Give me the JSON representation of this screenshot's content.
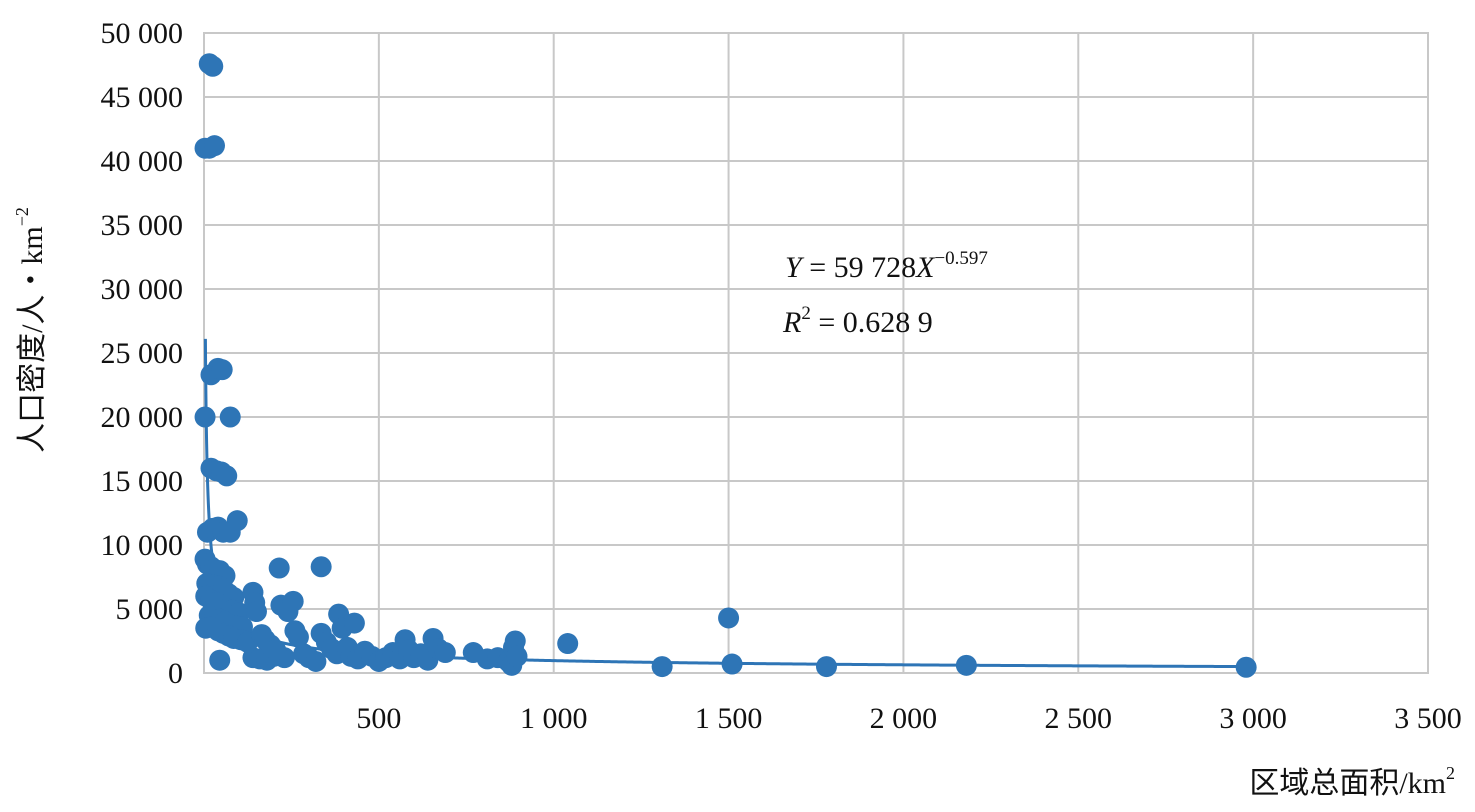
{
  "chart_data": {
    "type": "scatter",
    "xlabel": "区域总面积/km",
    "xlabel_superscript": "2",
    "ylabel": "人口密度/人・km",
    "ylabel_superscript": "−2",
    "x_ticks": [
      "500",
      "1 000",
      "1 500",
      "2 000",
      "2 500",
      "3 000",
      "3 500"
    ],
    "y_ticks": [
      "0",
      "5 000",
      "10 000",
      "15 000",
      "20 000",
      "25 000",
      "30 000",
      "35 000",
      "40 000",
      "45 000",
      "50 000"
    ],
    "xlim": [
      0,
      3500
    ],
    "ylim": [
      0,
      50000
    ],
    "grid": true,
    "legend": "none",
    "colors": {
      "points": "#2e75b6",
      "trendline": "#2e75b6",
      "grid": "#c8c8c8"
    },
    "trendline": {
      "type": "power",
      "a": 59728,
      "b": -0.597,
      "equation_lead": "Y",
      "equation_rest": " = 59 728",
      "equation_x": "X",
      "equation_exponent": "−0.597",
      "r2_lead": "R",
      "r2_sup": "2",
      "r2_rest": " = 0.628 9"
    },
    "points": [
      [
        15,
        47600
      ],
      [
        25,
        47400
      ],
      [
        3,
        41000
      ],
      [
        15,
        41000
      ],
      [
        30,
        41200
      ],
      [
        20,
        23300
      ],
      [
        40,
        23800
      ],
      [
        52,
        23700
      ],
      [
        3,
        20000
      ],
      [
        75,
        20000
      ],
      [
        20,
        16000
      ],
      [
        35,
        15800
      ],
      [
        50,
        15700
      ],
      [
        65,
        15400
      ],
      [
        10,
        11000
      ],
      [
        25,
        11300
      ],
      [
        40,
        11400
      ],
      [
        55,
        11000
      ],
      [
        75,
        11000
      ],
      [
        95,
        11900
      ],
      [
        3,
        8900
      ],
      [
        10,
        8500
      ],
      [
        20,
        8300
      ],
      [
        30,
        8100
      ],
      [
        45,
        8000
      ],
      [
        60,
        7600
      ],
      [
        8,
        7000
      ],
      [
        25,
        6900
      ],
      [
        40,
        6800
      ],
      [
        55,
        6600
      ],
      [
        70,
        6200
      ],
      [
        85,
        5900
      ],
      [
        5,
        6000
      ],
      [
        20,
        5700
      ],
      [
        35,
        5500
      ],
      [
        50,
        5300
      ],
      [
        65,
        5000
      ],
      [
        80,
        4900
      ],
      [
        100,
        4700
      ],
      [
        15,
        4500
      ],
      [
        30,
        4400
      ],
      [
        45,
        4200
      ],
      [
        60,
        4000
      ],
      [
        75,
        3800
      ],
      [
        90,
        3700
      ],
      [
        110,
        3600
      ],
      [
        5,
        3500
      ],
      [
        20,
        3600
      ],
      [
        40,
        3300
      ],
      [
        55,
        3100
      ],
      [
        70,
        2900
      ],
      [
        85,
        2700
      ],
      [
        105,
        2600
      ],
      [
        125,
        2400
      ],
      [
        45,
        1000
      ],
      [
        140,
        1200
      ],
      [
        160,
        1100
      ],
      [
        180,
        1000
      ],
      [
        200,
        1300
      ],
      [
        230,
        1200
      ],
      [
        140,
        6300
      ],
      [
        145,
        5500
      ],
      [
        150,
        4800
      ],
      [
        165,
        3000
      ],
      [
        175,
        2600
      ],
      [
        190,
        2200
      ],
      [
        205,
        1800
      ],
      [
        215,
        8200
      ],
      [
        220,
        5300
      ],
      [
        240,
        4800
      ],
      [
        255,
        5600
      ],
      [
        260,
        3300
      ],
      [
        270,
        2800
      ],
      [
        285,
        1500
      ],
      [
        300,
        1200
      ],
      [
        320,
        900
      ],
      [
        335,
        8300
      ],
      [
        335,
        3100
      ],
      [
        350,
        2400
      ],
      [
        365,
        1900
      ],
      [
        380,
        1500
      ],
      [
        385,
        4600
      ],
      [
        395,
        3500
      ],
      [
        410,
        2000
      ],
      [
        420,
        1300
      ],
      [
        430,
        3900
      ],
      [
        440,
        1100
      ],
      [
        460,
        1700
      ],
      [
        480,
        1300
      ],
      [
        500,
        900
      ],
      [
        520,
        1200
      ],
      [
        540,
        1600
      ],
      [
        560,
        1100
      ],
      [
        575,
        2600
      ],
      [
        585,
        1800
      ],
      [
        600,
        1200
      ],
      [
        620,
        1500
      ],
      [
        640,
        1000
      ],
      [
        655,
        2700
      ],
      [
        670,
        1900
      ],
      [
        690,
        1600
      ],
      [
        770,
        1600
      ],
      [
        810,
        1100
      ],
      [
        840,
        1200
      ],
      [
        870,
        900
      ],
      [
        880,
        600
      ],
      [
        885,
        2000
      ],
      [
        890,
        2500
      ],
      [
        895,
        1300
      ],
      [
        1040,
        2300
      ],
      [
        1310,
        500
      ],
      [
        1500,
        4300
      ],
      [
        1510,
        700
      ],
      [
        1780,
        500
      ],
      [
        2180,
        600
      ],
      [
        2980,
        450
      ]
    ]
  }
}
